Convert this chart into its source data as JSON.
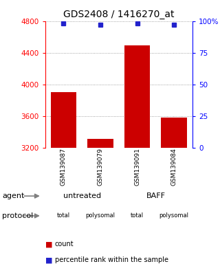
{
  "title": "GDS2408 / 1416270_at",
  "samples": [
    "GSM139087",
    "GSM139079",
    "GSM139091",
    "GSM139084"
  ],
  "counts": [
    3900,
    3310,
    4490,
    3580
  ],
  "percentiles": [
    98,
    97,
    98,
    97
  ],
  "ylim_left": [
    3200,
    4800
  ],
  "ylim_right": [
    0,
    100
  ],
  "yticks_left": [
    3200,
    3600,
    4000,
    4400,
    4800
  ],
  "yticks_right": [
    0,
    25,
    50,
    75,
    100
  ],
  "ytick_labels_right": [
    "0",
    "25",
    "50",
    "75",
    "100%"
  ],
  "bar_color": "#cc0000",
  "dot_color": "#2222cc",
  "sample_bg": "#cccccc",
  "agent_untreated_color": "#bbffbb",
  "agent_baff_color": "#44ee44",
  "proto_total_color": "#ffbbff",
  "proto_poly_color": "#dd44dd",
  "grid_color": "#888888",
  "title_fontsize": 10,
  "axis_fontsize": 7.5,
  "label_fontsize": 8
}
